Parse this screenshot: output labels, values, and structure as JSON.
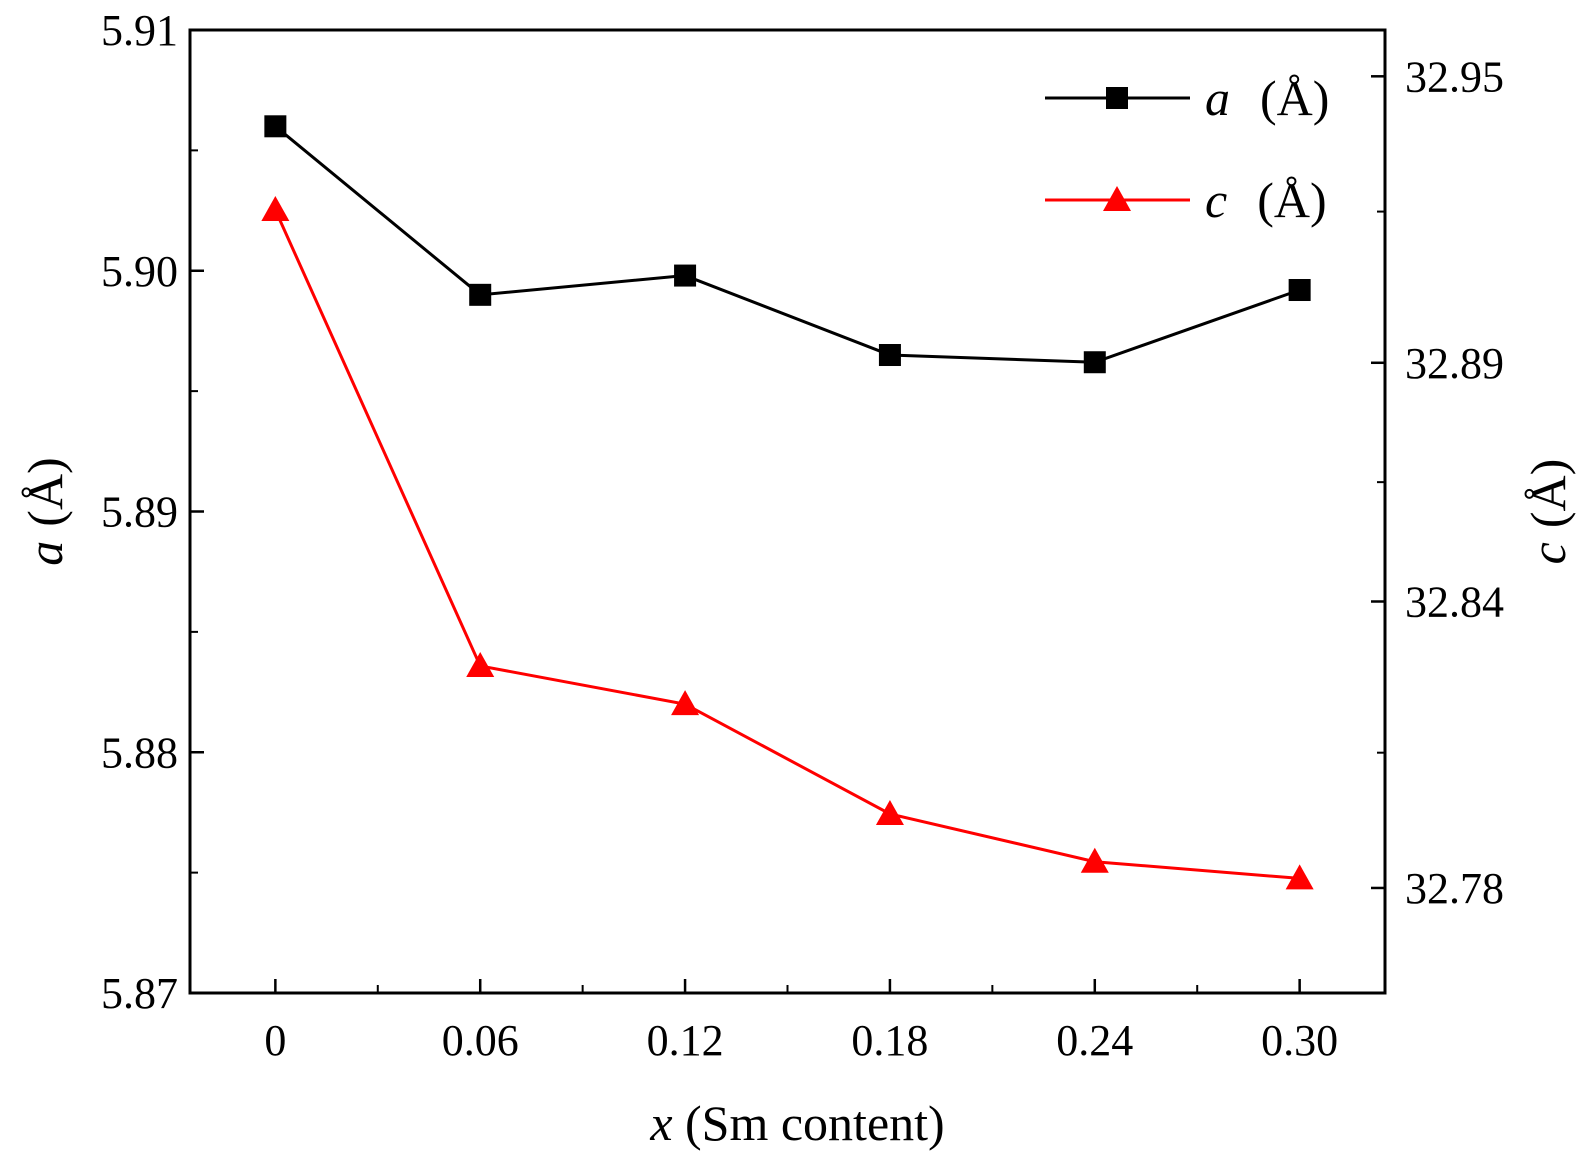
{
  "chart_data": {
    "type": "line",
    "x": [
      0,
      0.06,
      0.12,
      0.18,
      0.24,
      0.3
    ],
    "x_tick_labels": [
      "0",
      "0.06",
      "0.12",
      "0.18",
      "0.24",
      "0.30"
    ],
    "xlim": [
      -0.025,
      0.325
    ],
    "xlabel": {
      "var": "x",
      "rest": " (Sm content)"
    },
    "y_left": {
      "label": {
        "var": "a",
        "rest": "(Å)"
      },
      "lim": [
        5.87,
        5.91
      ],
      "ticks": [
        5.87,
        5.88,
        5.89,
        5.9,
        5.91
      ],
      "tick_labels": [
        "5.87",
        "5.88",
        "5.89",
        "5.90",
        "5.91"
      ]
    },
    "y_right": {
      "label": {
        "var": "c",
        "rest": "(Å)"
      },
      "lim": [
        32.758,
        32.9597
      ],
      "ticks": [
        32.78,
        32.84,
        32.89,
        32.95
      ],
      "tick_labels": [
        "32.78",
        "32.84",
        "32.89",
        "32.95"
      ]
    },
    "series": [
      {
        "name": {
          "var": "a",
          "rest": "(Å)"
        },
        "axis": "left",
        "marker": "square",
        "color": "#000000",
        "values": [
          5.906,
          5.899,
          5.8998,
          5.8965,
          5.8962,
          5.8992
        ]
      },
      {
        "name": {
          "var": "c",
          "rest": "(Å)"
        },
        "axis": "right",
        "marker": "triangle",
        "color": "#ff0000",
        "values": [
          32.922,
          32.8265,
          32.8185,
          32.7955,
          32.7855,
          32.782
        ]
      }
    ],
    "legend_position": "top-right",
    "grid": false
  }
}
